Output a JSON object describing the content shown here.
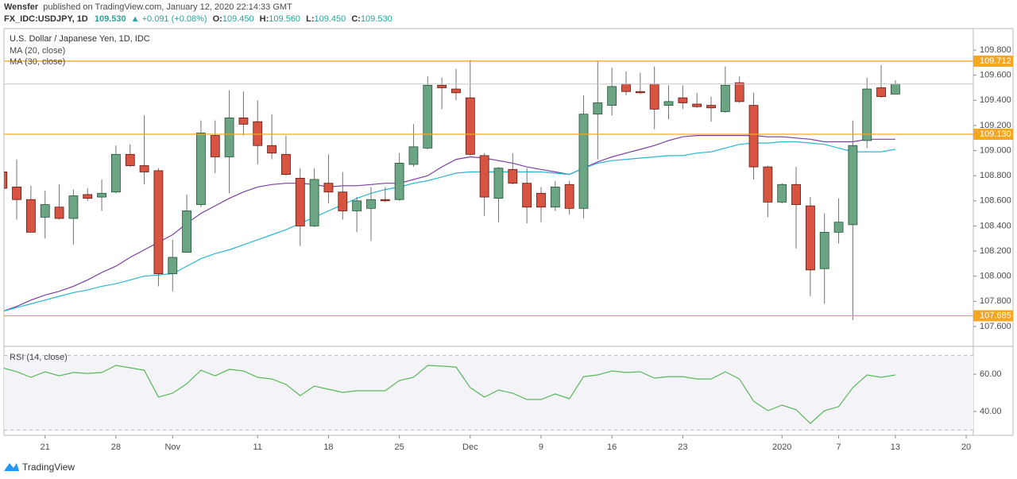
{
  "header": {
    "author": "Wensfer",
    "published": "published on TradingView.com, January 12, 2020 22:14:33 GMT",
    "symbol": "FX_IDC:USDJPY, 1D",
    "price": "109.530",
    "change": "▲ +0.091 (+0.08%)",
    "ohlc": [
      {
        "label": "O:",
        "value": "109.450"
      },
      {
        "label": "H:",
        "value": "109.560"
      },
      {
        "label": "L:",
        "value": "109.450"
      },
      {
        "label": "C:",
        "value": "109.530"
      }
    ]
  },
  "footer": {
    "brand": "TradingView"
  },
  "chart_data": [
    {
      "type": "candlestick",
      "title": "U.S. Dollar / Japanese Yen, 1D, IDC",
      "categories": [
        null,
        null,
        null,
        "21",
        null,
        null,
        null,
        null,
        "28",
        null,
        null,
        null,
        "Nov",
        null,
        null,
        null,
        null,
        null,
        "11",
        null,
        null,
        null,
        null,
        "18",
        null,
        null,
        null,
        null,
        "25",
        null,
        null,
        null,
        null,
        "Dec",
        null,
        null,
        null,
        null,
        "9",
        null,
        null,
        null,
        null,
        "16",
        null,
        null,
        null,
        null,
        "23",
        null,
        null,
        null,
        null,
        null,
        null,
        "2020",
        null,
        null,
        null,
        "7",
        null,
        null,
        null,
        "13",
        null,
        null,
        null,
        null,
        "20"
      ],
      "open": [
        108.83,
        108.71,
        108.61,
        108.47,
        108.55,
        108.46,
        108.65,
        108.63,
        108.67,
        108.97,
        108.88,
        108.84,
        108.02,
        108.19,
        108.57,
        109.12,
        108.95,
        109.26,
        109.23,
        109.04,
        108.97,
        108.78,
        108.4,
        108.74,
        108.67,
        108.52,
        108.54,
        108.61,
        108.61,
        108.89,
        109.02,
        109.52,
        109.49,
        109.42,
        108.96,
        108.62,
        108.85,
        108.74,
        108.66,
        108.55,
        108.73,
        108.54,
        109.29,
        109.36,
        109.53,
        109.47,
        109.53,
        109.36,
        109.42,
        109.37,
        109.36,
        109.31,
        109.54,
        109.36,
        108.87,
        108.59,
        108.73,
        108.56,
        108.06,
        108.35,
        108.41,
        109.08,
        109.5,
        109.45,
        null,
        null,
        null,
        null,
        null
      ],
      "high": [
        108.9,
        108.93,
        108.72,
        108.68,
        108.73,
        108.69,
        108.7,
        108.77,
        109.04,
        109.05,
        109.28,
        108.86,
        108.29,
        108.65,
        109.24,
        109.24,
        109.48,
        109.47,
        109.4,
        109.29,
        109.12,
        108.86,
        108.86,
        108.97,
        108.83,
        108.63,
        108.71,
        108.71,
        108.98,
        109.21,
        109.59,
        109.58,
        109.65,
        109.72,
        108.98,
        108.87,
        108.98,
        108.86,
        108.71,
        108.76,
        108.76,
        109.44,
        109.71,
        109.66,
        109.63,
        109.62,
        109.67,
        109.52,
        109.52,
        109.46,
        109.43,
        109.67,
        109.59,
        109.46,
        108.88,
        108.74,
        108.87,
        108.63,
        108.5,
        108.62,
        109.24,
        109.58,
        109.68,
        109.56,
        null,
        null,
        null,
        null,
        null
      ],
      "low": [
        108.68,
        108.45,
        108.35,
        108.3,
        108.45,
        108.25,
        108.6,
        108.52,
        108.66,
        108.87,
        108.73,
        107.92,
        107.88,
        108.19,
        108.55,
        108.82,
        108.66,
        109.12,
        108.89,
        108.93,
        108.8,
        108.24,
        108.39,
        108.58,
        108.45,
        108.35,
        108.28,
        108.59,
        108.6,
        108.87,
        109.01,
        109.33,
        109.4,
        108.96,
        108.48,
        108.43,
        108.73,
        108.42,
        108.43,
        108.52,
        108.49,
        108.46,
        108.93,
        109.28,
        109.44,
        109.45,
        109.17,
        109.25,
        109.33,
        109.34,
        109.23,
        109.3,
        109.38,
        108.77,
        108.47,
        108.58,
        108.22,
        107.84,
        107.78,
        108.26,
        107.65,
        109.02,
        109.42,
        109.45,
        null,
        null,
        null,
        null,
        null
      ],
      "close": [
        108.7,
        108.61,
        108.35,
        108.57,
        108.46,
        108.64,
        108.62,
        108.66,
        108.97,
        108.88,
        108.83,
        108.02,
        108.15,
        108.52,
        109.14,
        108.95,
        109.26,
        109.21,
        109.04,
        108.98,
        108.81,
        108.4,
        108.77,
        108.67,
        108.52,
        108.6,
        108.61,
        108.6,
        108.9,
        109.03,
        109.52,
        109.5,
        109.46,
        108.97,
        108.63,
        108.86,
        108.74,
        108.55,
        108.55,
        108.71,
        108.54,
        109.29,
        109.38,
        109.51,
        109.47,
        109.46,
        109.33,
        109.39,
        109.38,
        109.35,
        109.34,
        109.52,
        109.39,
        108.87,
        108.59,
        108.73,
        108.57,
        108.05,
        108.35,
        108.43,
        109.04,
        109.49,
        109.43,
        109.53,
        null,
        null,
        null,
        null,
        null
      ],
      "up_color": "#6ba583",
      "down_color": "#d75442",
      "wick_color": "#737375",
      "series": [
        {
          "name": "MA (20, close)",
          "color": "#7b3fa0",
          "values": [
            107.72,
            107.76,
            107.81,
            107.85,
            107.88,
            107.92,
            107.97,
            108.03,
            108.08,
            108.15,
            108.21,
            108.27,
            108.33,
            108.42,
            108.5,
            108.56,
            108.62,
            108.67,
            108.71,
            108.73,
            108.74,
            108.74,
            108.73,
            108.71,
            108.72,
            108.72,
            108.73,
            108.74,
            108.74,
            108.77,
            108.8,
            108.87,
            108.93,
            108.95,
            108.94,
            108.92,
            108.9,
            108.87,
            108.85,
            108.83,
            108.81,
            108.86,
            108.91,
            108.95,
            108.98,
            109.01,
            109.04,
            109.08,
            109.11,
            109.12,
            109.12,
            109.12,
            109.12,
            109.12,
            109.11,
            109.11,
            109.1,
            109.09,
            109.07,
            109.07,
            109.07,
            109.09,
            109.09,
            109.09,
            null,
            null,
            null,
            null,
            null
          ]
        },
        {
          "name": "MA (30, close)",
          "color": "#29b6d1",
          "values": [
            107.72,
            107.75,
            107.78,
            107.81,
            107.84,
            107.87,
            107.89,
            107.92,
            107.94,
            107.97,
            108.0,
            108.01,
            108.02,
            108.08,
            108.14,
            108.18,
            108.21,
            108.25,
            108.29,
            108.33,
            108.37,
            108.42,
            108.47,
            108.52,
            108.57,
            108.62,
            108.66,
            108.69,
            108.71,
            108.74,
            108.76,
            108.79,
            108.82,
            108.83,
            108.83,
            108.83,
            108.83,
            108.83,
            108.83,
            108.82,
            108.81,
            108.86,
            108.9,
            108.92,
            108.93,
            108.94,
            108.95,
            108.96,
            108.96,
            108.98,
            108.99,
            109.02,
            109.05,
            109.06,
            109.06,
            109.07,
            109.07,
            109.06,
            109.05,
            109.02,
            108.99,
            108.99,
            108.99,
            109.01,
            null,
            null,
            null,
            null,
            null
          ]
        }
      ],
      "levels": [
        {
          "value": 109.712,
          "label": "109.712"
        },
        {
          "value": 109.13,
          "label": "109.130"
        },
        {
          "value": 107.685,
          "label": "107.685"
        }
      ],
      "level_color": "#f5a623",
      "ylim": [
        107.448,
        109.971
      ],
      "yticks": [
        {
          "value": 107.6,
          "label": "107.600"
        },
        {
          "value": 107.8,
          "label": "107.800"
        },
        {
          "value": 108.0,
          "label": "108.000"
        },
        {
          "value": 108.2,
          "label": "108.200"
        },
        {
          "value": 108.4,
          "label": "108.400"
        },
        {
          "value": 108.6,
          "label": "108.600"
        },
        {
          "value": 108.8,
          "label": "108.800"
        },
        {
          "value": 109.0,
          "label": "109.000"
        },
        {
          "value": 109.2,
          "label": "109.200"
        },
        {
          "value": 109.4,
          "label": "109.400"
        },
        {
          "value": 109.6,
          "label": "109.600"
        },
        {
          "value": 109.8,
          "label": "109.800"
        }
      ]
    },
    {
      "type": "line",
      "title": "RSI (14, close)",
      "series": [
        {
          "name": "RSI",
          "color": "#5cb85c",
          "values": [
            63.4,
            61.3,
            58.3,
            61.3,
            59.1,
            60.9,
            60.4,
            60.9,
            64.7,
            63.4,
            62.1,
            47.7,
            49.8,
            54.9,
            62.1,
            59.1,
            62.6,
            61.7,
            58.3,
            57.4,
            54.5,
            48.5,
            53.6,
            51.9,
            50.2,
            51.1,
            51.1,
            51.1,
            56.6,
            58.3,
            64.7,
            64.3,
            63.8,
            52.8,
            47.7,
            51.5,
            49.8,
            46.4,
            46.4,
            49.4,
            46.8,
            58.7,
            59.6,
            61.7,
            60.9,
            61.3,
            57.9,
            58.7,
            58.7,
            57.4,
            57.4,
            61.3,
            57.4,
            45.5,
            40.4,
            43.4,
            40.9,
            33.6,
            40.4,
            42.6,
            52.8,
            59.6,
            58.3,
            59.6,
            null,
            null,
            null,
            null,
            null
          ]
        }
      ],
      "bands": [
        70,
        30
      ],
      "ylim": [
        27.2,
        74.5
      ],
      "yticks": [
        {
          "value": 40,
          "label": "40.00"
        },
        {
          "value": 60,
          "label": "60.00"
        }
      ]
    }
  ]
}
